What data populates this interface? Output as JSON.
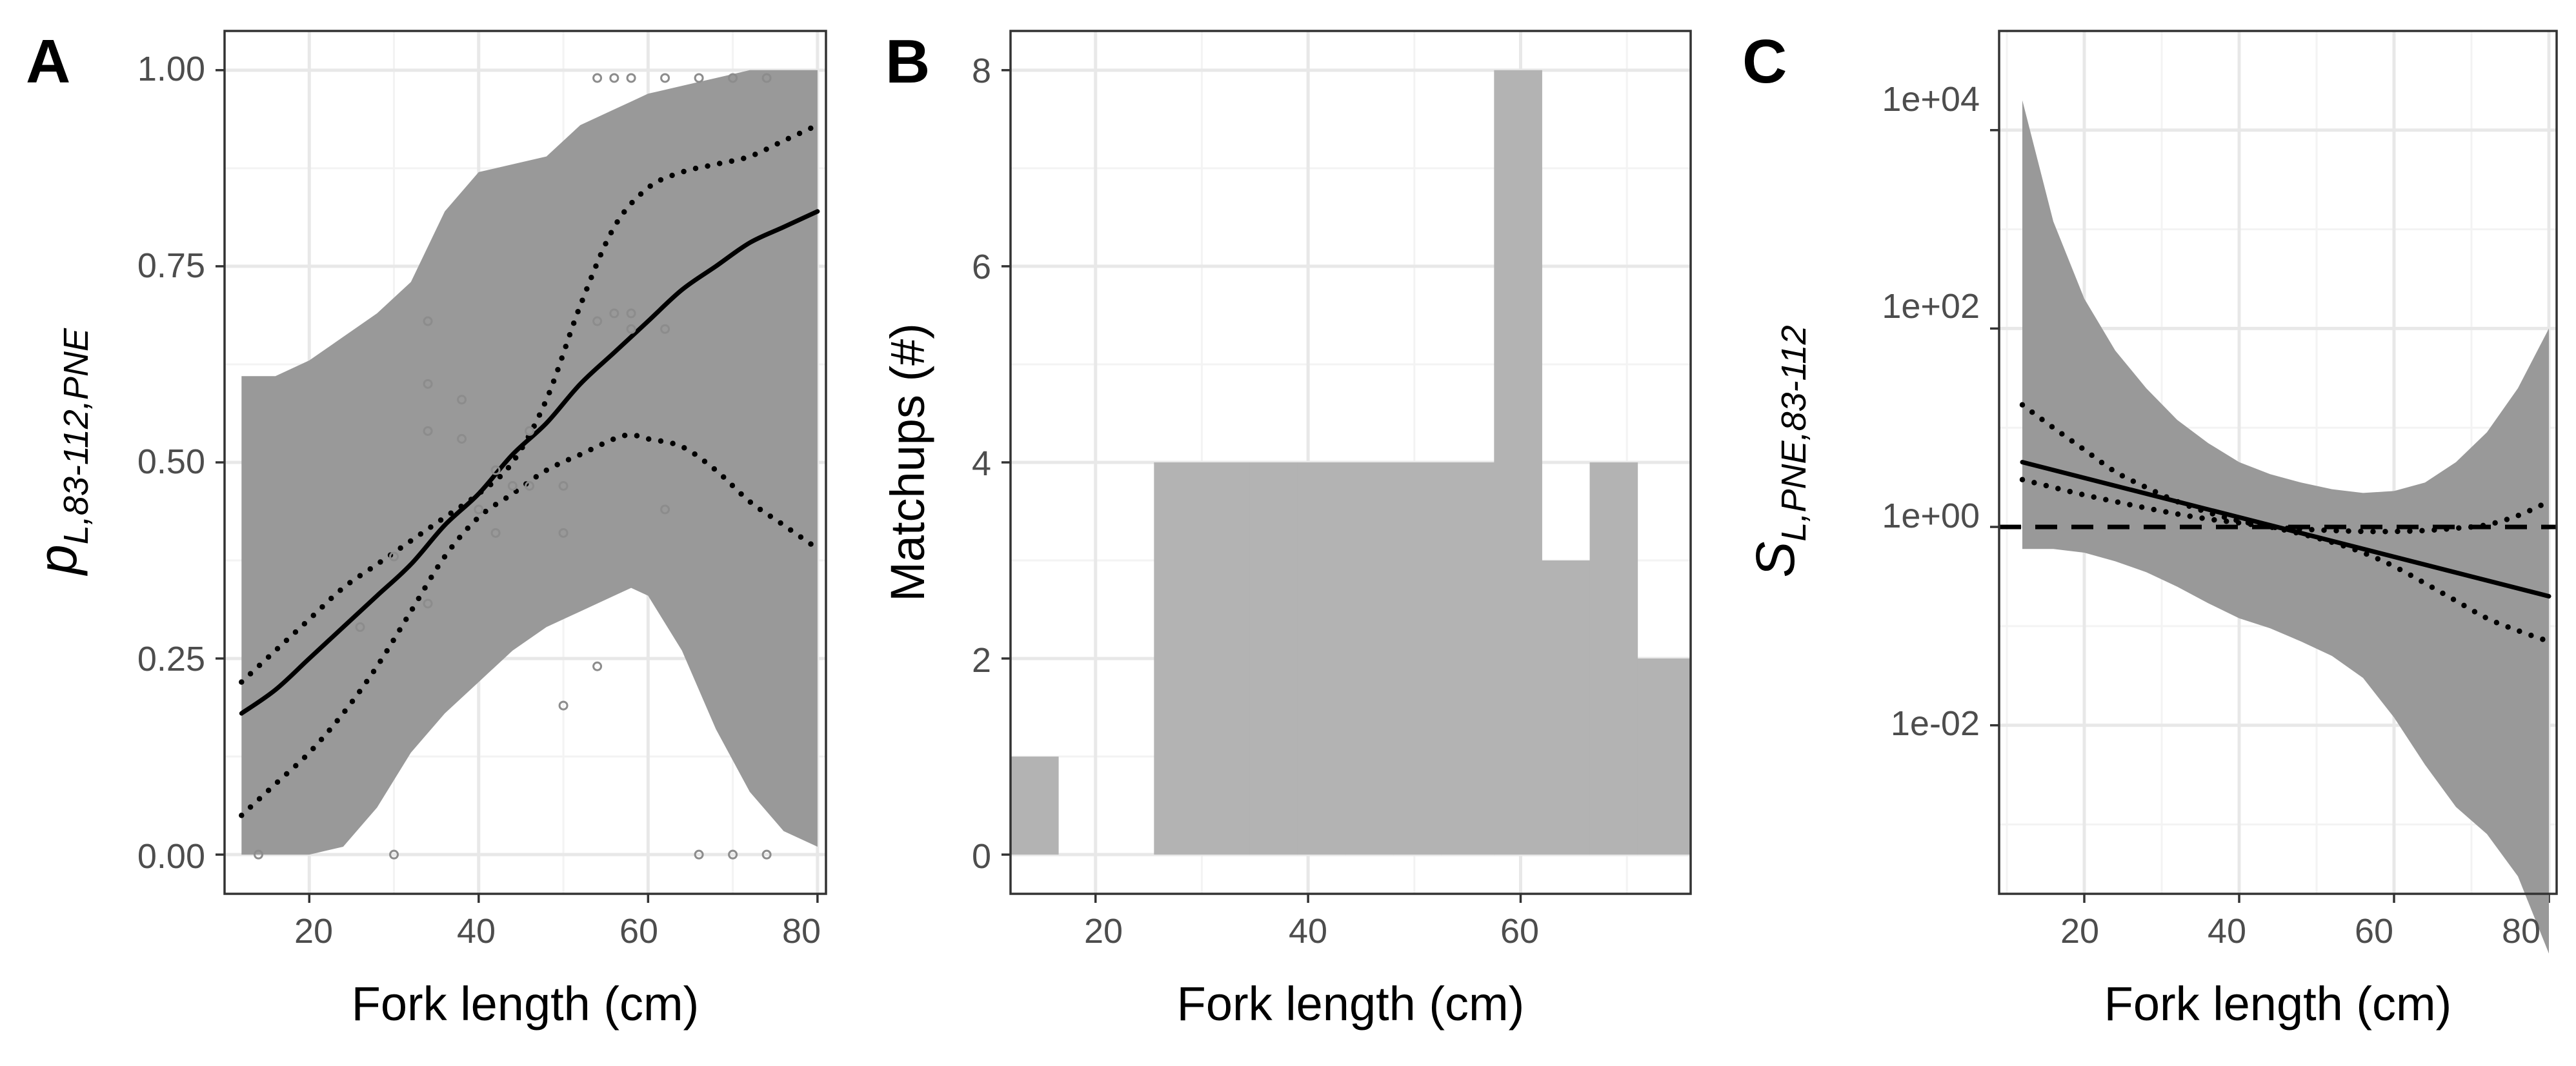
{
  "figure": {
    "panels": [
      {
        "label": "A",
        "ylabel_main": "p",
        "ylabel_sub": "L,83-112,PNE",
        "xlabel": "Fork length (cm)",
        "x_ticks": [
          "20",
          "40",
          "60",
          "80"
        ],
        "y_ticks": [
          "0.00",
          "0.25",
          "0.50",
          "0.75",
          "1.00"
        ]
      },
      {
        "label": "B",
        "ylabel": "Matchups (#)",
        "xlabel": "Fork length (cm)",
        "x_ticks": [
          "20",
          "40",
          "60"
        ],
        "y_ticks": [
          "0",
          "2",
          "4",
          "6",
          "8"
        ]
      },
      {
        "label": "C",
        "ylabel_main": "S",
        "ylabel_sub": "L,PNE,83-112",
        "xlabel": "Fork length (cm)",
        "x_ticks": [
          "20",
          "40",
          "60",
          "80"
        ],
        "y_ticks": [
          "1e-02",
          "1e+00",
          "1e+02",
          "1e+04"
        ]
      }
    ]
  },
  "colors": {
    "ribbon": "#999999",
    "bars": "#b3b3b3",
    "line": "#000000",
    "points": "#8c8c8c"
  },
  "chart_data": [
    {
      "type": "line",
      "panel": "A",
      "xlim": [
        10,
        81
      ],
      "ylim": [
        -0.05,
        1.05
      ],
      "x_major_ticks": [
        20,
        40,
        60,
        80
      ],
      "y_major_ticks": [
        0,
        0.25,
        0.5,
        0.75,
        1
      ],
      "grid": true,
      "ribbon": {
        "x": [
          12,
          16,
          20,
          24,
          28,
          32,
          36,
          40,
          44,
          48,
          52,
          56,
          58,
          60,
          64,
          68,
          72,
          76,
          80
        ],
        "lower": [
          0.0,
          0.0,
          0.0,
          0.01,
          0.06,
          0.13,
          0.18,
          0.22,
          0.26,
          0.29,
          0.31,
          0.33,
          0.34,
          0.33,
          0.26,
          0.16,
          0.08,
          0.03,
          0.01
        ],
        "upper": [
          0.61,
          0.61,
          0.63,
          0.66,
          0.69,
          0.73,
          0.82,
          0.87,
          0.88,
          0.89,
          0.93,
          0.95,
          0.96,
          0.97,
          0.98,
          0.99,
          1.0,
          1.0,
          1.0
        ]
      },
      "series": [
        {
          "x": [
            12,
            16,
            20,
            24,
            28,
            32,
            36,
            40,
            44,
            48,
            52,
            56,
            60,
            64,
            68,
            72,
            76,
            80
          ],
          "y": [
            0.18,
            0.21,
            0.25,
            0.29,
            0.33,
            0.37,
            0.42,
            0.46,
            0.51,
            0.55,
            0.6,
            0.64,
            0.68,
            0.72,
            0.75,
            0.78,
            0.8,
            0.82
          ],
          "style": "solid"
        },
        {
          "x": [
            12,
            16,
            20,
            24,
            28,
            32,
            36,
            40,
            44,
            48,
            52,
            56,
            60,
            64,
            68,
            72,
            76,
            80
          ],
          "y": [
            0.22,
            0.26,
            0.3,
            0.34,
            0.37,
            0.4,
            0.43,
            0.46,
            0.5,
            0.58,
            0.7,
            0.8,
            0.85,
            0.87,
            0.88,
            0.89,
            0.91,
            0.93
          ],
          "style": "dotted"
        },
        {
          "x": [
            12,
            16,
            20,
            24,
            28,
            32,
            36,
            40,
            44,
            48,
            52,
            56,
            58,
            60,
            64,
            68,
            72,
            76,
            80
          ],
          "y": [
            0.05,
            0.09,
            0.13,
            0.18,
            0.24,
            0.31,
            0.38,
            0.43,
            0.46,
            0.49,
            0.51,
            0.53,
            0.535,
            0.53,
            0.52,
            0.49,
            0.45,
            0.42,
            0.39
          ],
          "style": "dotted"
        }
      ],
      "points": {
        "x": [
          14,
          30,
          66,
          70,
          74,
          54,
          56,
          58,
          62,
          66,
          70,
          74,
          34,
          34,
          34,
          38,
          38,
          30,
          40,
          42,
          44,
          46,
          46,
          50,
          50,
          54,
          56,
          58,
          58,
          62,
          62,
          54,
          50,
          42,
          34,
          26
        ],
        "y": [
          0.0,
          0.0,
          0.0,
          0.0,
          0.0,
          0.99,
          0.99,
          0.99,
          0.99,
          0.99,
          0.99,
          0.99,
          0.68,
          0.6,
          0.54,
          0.58,
          0.53,
          0.38,
          0.44,
          0.49,
          0.47,
          0.54,
          0.47,
          0.47,
          0.41,
          0.68,
          0.69,
          0.69,
          0.67,
          0.67,
          0.44,
          0.24,
          0.19,
          0.41,
          0.32,
          0.29
        ]
      }
    },
    {
      "type": "bar",
      "panel": "B",
      "xlim": [
        12,
        76
      ],
      "ylim": [
        -0.4,
        8.4
      ],
      "x_major_ticks": [
        20,
        40,
        60
      ],
      "y_major_ticks": [
        0,
        2,
        4,
        6,
        8
      ],
      "grid": true,
      "bins": [
        {
          "x0": 12.0,
          "x1": 16.5,
          "count": 1
        },
        {
          "x0": 16.5,
          "x1": 21.0,
          "count": 0
        },
        {
          "x0": 21.0,
          "x1": 25.5,
          "count": 0
        },
        {
          "x0": 25.5,
          "x1": 30.0,
          "count": 4
        },
        {
          "x0": 30.0,
          "x1": 34.5,
          "count": 4
        },
        {
          "x0": 34.5,
          "x1": 39.0,
          "count": 4
        },
        {
          "x0": 39.0,
          "x1": 43.5,
          "count": 4
        },
        {
          "x0": 43.5,
          "x1": 48.0,
          "count": 4
        },
        {
          "x0": 48.0,
          "x1": 52.5,
          "count": 4
        },
        {
          "x0": 52.5,
          "x1": 57.5,
          "count": 4
        },
        {
          "x0": 57.5,
          "x1": 62.0,
          "count": 8
        },
        {
          "x0": 62.0,
          "x1": 66.5,
          "count": 3
        },
        {
          "x0": 66.5,
          "x1": 71.0,
          "count": 4
        },
        {
          "x0": 71.0,
          "x1": 76.0,
          "count": 2
        }
      ]
    },
    {
      "type": "line",
      "panel": "C",
      "yscale": "log10",
      "xlim": [
        9,
        81
      ],
      "ylim": [
        0.0002,
        100000
      ],
      "x_major_ticks": [
        20,
        40,
        60,
        80
      ],
      "y_major_ticks": [
        0.01,
        1,
        100,
        10000
      ],
      "grid": true,
      "ribbon": {
        "x": [
          12,
          16,
          20,
          24,
          28,
          32,
          36,
          40,
          44,
          48,
          52,
          56,
          60,
          64,
          68,
          72,
          76,
          80
        ],
        "lower": [
          0.6,
          0.6,
          0.55,
          0.45,
          0.35,
          0.25,
          0.17,
          0.12,
          0.095,
          0.07,
          0.05,
          0.03,
          0.012,
          0.004,
          0.0015,
          0.0008,
          0.0003,
          5e-05
        ],
        "upper": [
          20000,
          1200,
          200,
          60,
          25,
          12,
          7,
          4.5,
          3.4,
          2.8,
          2.4,
          2.2,
          2.3,
          2.8,
          4.5,
          9,
          25,
          100
        ]
      },
      "series": [
        {
          "x": [
            12,
            80
          ],
          "y": [
            4.5,
            0.2
          ],
          "style": "solid"
        },
        {
          "x": [
            12,
            16,
            20,
            24,
            28,
            32,
            36,
            40,
            44,
            48,
            52,
            56,
            60,
            64,
            68,
            72,
            76,
            80
          ],
          "y": [
            17,
            10,
            6,
            3.6,
            2.5,
            1.8,
            1.4,
            1.15,
            1.0,
            0.85,
            0.7,
            0.55,
            0.4,
            0.27,
            0.18,
            0.12,
            0.09,
            0.07
          ],
          "style": "dotted"
        },
        {
          "x": [
            12,
            16,
            20,
            24,
            28,
            32,
            36,
            40,
            44,
            48,
            52,
            56,
            60,
            64,
            68,
            72,
            76,
            80
          ],
          "y": [
            3.0,
            2.5,
            2.1,
            1.8,
            1.55,
            1.35,
            1.2,
            1.1,
            1.0,
            0.95,
            0.92,
            0.9,
            0.9,
            0.92,
            0.97,
            1.05,
            1.3,
            1.8
          ],
          "style": "dotted"
        },
        {
          "x": [
            9,
            81
          ],
          "y": [
            1,
            1
          ],
          "style": "dashed"
        }
      ]
    }
  ]
}
